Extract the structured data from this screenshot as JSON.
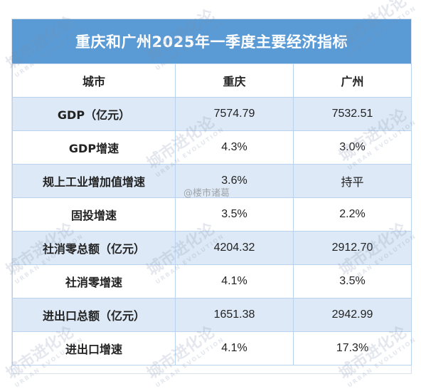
{
  "table": {
    "title": "重庆和广州2025年一季度主要经济指标",
    "headers": [
      "城市",
      "重庆",
      "广州"
    ],
    "rows": [
      {
        "label": "GDP（亿元）",
        "cq": "7574.79",
        "gz": "7532.51"
      },
      {
        "label": "GDP增速",
        "cq": "4.3%",
        "gz": "3.0%"
      },
      {
        "label": "规上工业增加值增速",
        "cq": "3.6%",
        "gz": "持平"
      },
      {
        "label": "固投增速",
        "cq": "3.5%",
        "gz": "2.2%"
      },
      {
        "label": "社消零总额（亿元）",
        "cq": "4204.32",
        "gz": "2912.70"
      },
      {
        "label": "社消零增速",
        "cq": "4.1%",
        "gz": "3.5%"
      },
      {
        "label": "进出口总额（亿元）",
        "cq": "1651.38",
        "gz": "2942.99"
      },
      {
        "label": "进出口增速",
        "cq": "4.1%",
        "gz": "17.3%"
      }
    ]
  },
  "watermark": {
    "cn": "城市进化论",
    "en": "URBAN EVOLUTION"
  },
  "weibo_mark": "@楼市诸葛"
}
